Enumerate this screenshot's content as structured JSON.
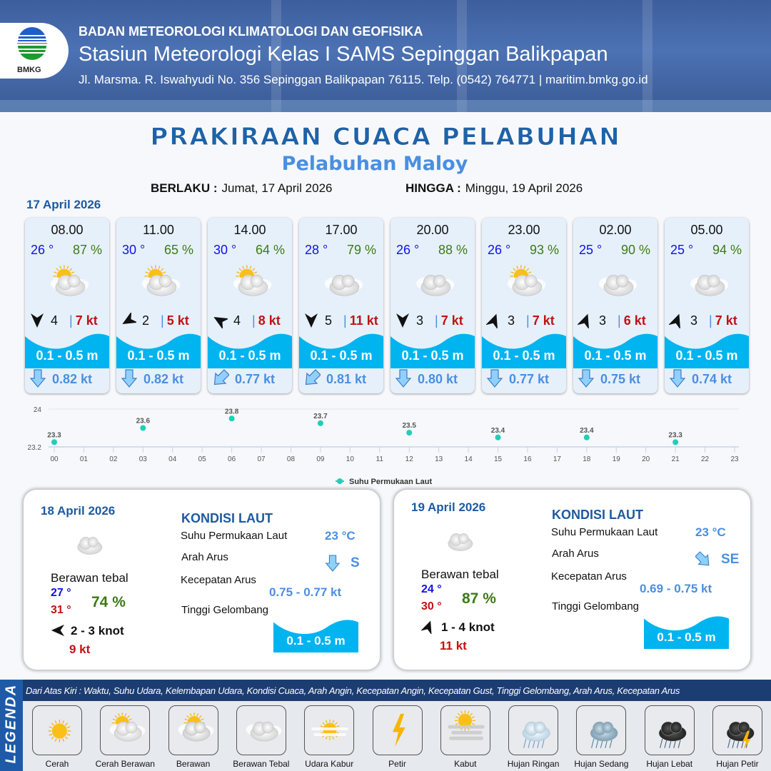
{
  "header": {
    "logo_text": "BMKG",
    "agency": "BADAN METEOROLOGI KLIMATOLOGI DAN GEOFISIKA",
    "station": "Stasiun Meteorologi Kelas I SAMS Sepinggan Balikpapan",
    "address": "Jl. Marsma. R. Iswahyudi No. 356 Sepinggan Balikpapan 76115. Telp. (0542) 764771 | maritim.bmkg.go.id"
  },
  "title": "PRAKIRAAN CUACA PELABUHAN",
  "subtitle": "Pelabuhan Maloy",
  "validity": {
    "from_label": "BERLAKU :",
    "from": "Jumat, 17 April 2026",
    "to_label": "HINGGA :",
    "to": "Minggu, 19 April 2026"
  },
  "day1": {
    "date": "17 April 2026",
    "forecasts": [
      {
        "time": "08.00",
        "temp": "26 °",
        "humidity": "87 %",
        "weather": "cerah-berawan",
        "wind_dir_deg": 180,
        "wind": "4",
        "gust": "7 kt",
        "wave": "0.1 - 0.5 m",
        "current_dir_deg": 180,
        "current": "0.82 kt"
      },
      {
        "time": "11.00",
        "temp": "30 °",
        "humidity": "65 %",
        "weather": "cerah-berawan",
        "wind_dir_deg": 240,
        "wind": "2",
        "gust": "5 kt",
        "wave": "0.1 - 0.5 m",
        "current_dir_deg": 180,
        "current": "0.82 kt"
      },
      {
        "time": "14.00",
        "temp": "30 °",
        "humidity": "64 %",
        "weather": "cerah-berawan",
        "wind_dir_deg": 300,
        "wind": "4",
        "gust": "8 kt",
        "wave": "0.1 - 0.5 m",
        "current_dir_deg": 225,
        "current": "0.77 kt"
      },
      {
        "time": "17.00",
        "temp": "28 °",
        "humidity": "79 %",
        "weather": "berawan-tebal",
        "wind_dir_deg": 180,
        "wind": "5",
        "gust": "11 kt",
        "wave": "0.1 - 0.5 m",
        "current_dir_deg": 225,
        "current": "0.81 kt"
      },
      {
        "time": "20.00",
        "temp": "26 °",
        "humidity": "88 %",
        "weather": "berawan-tebal",
        "wind_dir_deg": 180,
        "wind": "3",
        "gust": "7 kt",
        "wave": "0.1 - 0.5 m",
        "current_dir_deg": 180,
        "current": "0.80 kt"
      },
      {
        "time": "23.00",
        "temp": "26 °",
        "humidity": "93 %",
        "weather": "cerah-berawan",
        "wind_dir_deg": 20,
        "wind": "3",
        "gust": "7 kt",
        "wave": "0.1 - 0.5 m",
        "current_dir_deg": 180,
        "current": "0.77 kt"
      },
      {
        "time": "02.00",
        "temp": "25 °",
        "humidity": "90 %",
        "weather": "berawan-tebal",
        "wind_dir_deg": 20,
        "wind": "3",
        "gust": "6 kt",
        "wave": "0.1 - 0.5 m",
        "current_dir_deg": 180,
        "current": "0.75 kt"
      },
      {
        "time": "05.00",
        "temp": "25 °",
        "humidity": "94 %",
        "weather": "berawan-tebal",
        "wind_dir_deg": 20,
        "wind": "3",
        "gust": "7 kt",
        "wave": "0.1 - 0.5 m",
        "current_dir_deg": 180,
        "current": "0.74 kt"
      }
    ]
  },
  "chart_data": {
    "type": "scatter",
    "x_ticks": [
      "00",
      "01",
      "02",
      "03",
      "04",
      "05",
      "06",
      "07",
      "08",
      "09",
      "10",
      "11",
      "12",
      "13",
      "14",
      "15",
      "16",
      "17",
      "18",
      "19",
      "20",
      "21",
      "22",
      "23"
    ],
    "y_ticks": [
      "23.2",
      "24"
    ],
    "ylim": [
      23.2,
      24
    ],
    "series": [
      {
        "name": "Suhu Permukaan Laut",
        "color": "#1fcfb8",
        "x": [
          "00",
          "03",
          "06",
          "09",
          "12",
          "15",
          "18",
          "21"
        ],
        "y": [
          23.3,
          23.6,
          23.8,
          23.7,
          23.5,
          23.4,
          23.4,
          23.3
        ]
      }
    ],
    "legend_position": "bottom",
    "grid": "vertical"
  },
  "days": [
    {
      "date": "18 April 2026",
      "weather": "berawan-tebal",
      "condition": "Berawan tebal",
      "tmin": "27 °",
      "tmax": "31 °",
      "humidity": "74 %",
      "wind_dir_deg": 270,
      "wind": "2  - 3 knot",
      "gust": "9 kt",
      "sea": {
        "heading": "KONDISI LAUT",
        "sst_label": "Suhu Permukaan Laut",
        "sst": "23 °C",
        "dir_label": "Arah Arus",
        "current_dir_deg": 180,
        "current_dir": "S",
        "speed_label": "Kecepatan Arus",
        "speed": "0.75  - 0.77 kt",
        "wave_label": "Tinggi Gelombang",
        "wave": "0.1 - 0.5 m"
      }
    },
    {
      "date": "19 April 2026",
      "weather": "berawan-tebal",
      "condition": "Berawan tebal",
      "tmin": "24 °",
      "tmax": "30 °",
      "humidity": "87 %",
      "wind_dir_deg": 20,
      "wind": "1  - 4 knot",
      "gust": "11 kt",
      "sea": {
        "heading": "KONDISI LAUT",
        "sst_label": "Suhu Permukaan Laut",
        "sst": "23 °C",
        "dir_label": "Arah Arus",
        "current_dir_deg": 135,
        "current_dir": "SE",
        "speed_label": "Kecepatan Arus",
        "speed": "0.69  - 0.75 kt",
        "wave_label": "Tinggi Gelombang",
        "wave": "0.1 - 0.5 m"
      }
    }
  ],
  "legend": {
    "title": "LEGENDA",
    "note": "Dari Atas Kiri : Waktu, Suhu Udara, Kelembapan Udara, Kondisi Cuaca, Arah Angin, Kecepatan Angin, Kecepatan Gust, Tinggi Gelombang, Arah Arus, Kecepatan Arus",
    "items": [
      {
        "label": "Cerah",
        "icon": "cerah"
      },
      {
        "label": "Cerah Berawan",
        "icon": "cerah-berawan"
      },
      {
        "label": "Berawan",
        "icon": "berawan"
      },
      {
        "label": "Berawan Tebal",
        "icon": "berawan-tebal"
      },
      {
        "label": "Udara Kabur",
        "icon": "udara-kabur"
      },
      {
        "label": "Petir",
        "icon": "petir"
      },
      {
        "label": "Kabut",
        "icon": "kabut"
      },
      {
        "label": "Hujan Ringan",
        "icon": "hujan-ringan"
      },
      {
        "label": "Hujan Sedang",
        "icon": "hujan-sedang"
      },
      {
        "label": "Hujan Lebat",
        "icon": "hujan-lebat"
      },
      {
        "label": "Hujan Petir",
        "icon": "hujan-petir"
      }
    ]
  },
  "colors": {
    "accent": "#1d5aa0",
    "temp": "#1010ee",
    "humidity": "#3d7a16",
    "gust": "#c11212",
    "wave": "#00b4f0",
    "current": "#4a8fe0"
  }
}
